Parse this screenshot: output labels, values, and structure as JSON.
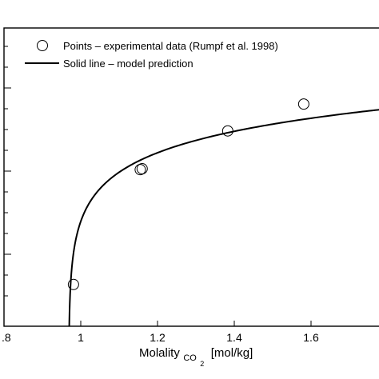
{
  "chart_data": {
    "type": "scatter",
    "xlabel": {
      "main": "Molality",
      "sub_main": "CO",
      "sub_sub": "2",
      "unit": "[mol/kg]"
    },
    "xlim": [
      0.8,
      1.8
    ],
    "x_ticks": [
      0.8,
      1.0,
      1.2,
      1.4,
      1.6
    ],
    "x_tick_labels": [
      ".8",
      "1",
      "1.2",
      "1.4",
      "1.6"
    ],
    "legend_position": "top-left",
    "series": [
      {
        "name": "Points – experimental data (Rumpf et al. 1998)",
        "kind": "points",
        "marker": "open-circle",
        "color": "#000000",
        "x": [
          0.981,
          1.155,
          1.16,
          1.383,
          1.581
        ],
        "y_rel": [
          0.14,
          0.525,
          0.528,
          0.655,
          0.745
        ]
      },
      {
        "name": "Solid line – model prediction",
        "kind": "line",
        "color": "#000000",
        "x_start": 0.97,
        "x_end": 1.8
      }
    ]
  }
}
